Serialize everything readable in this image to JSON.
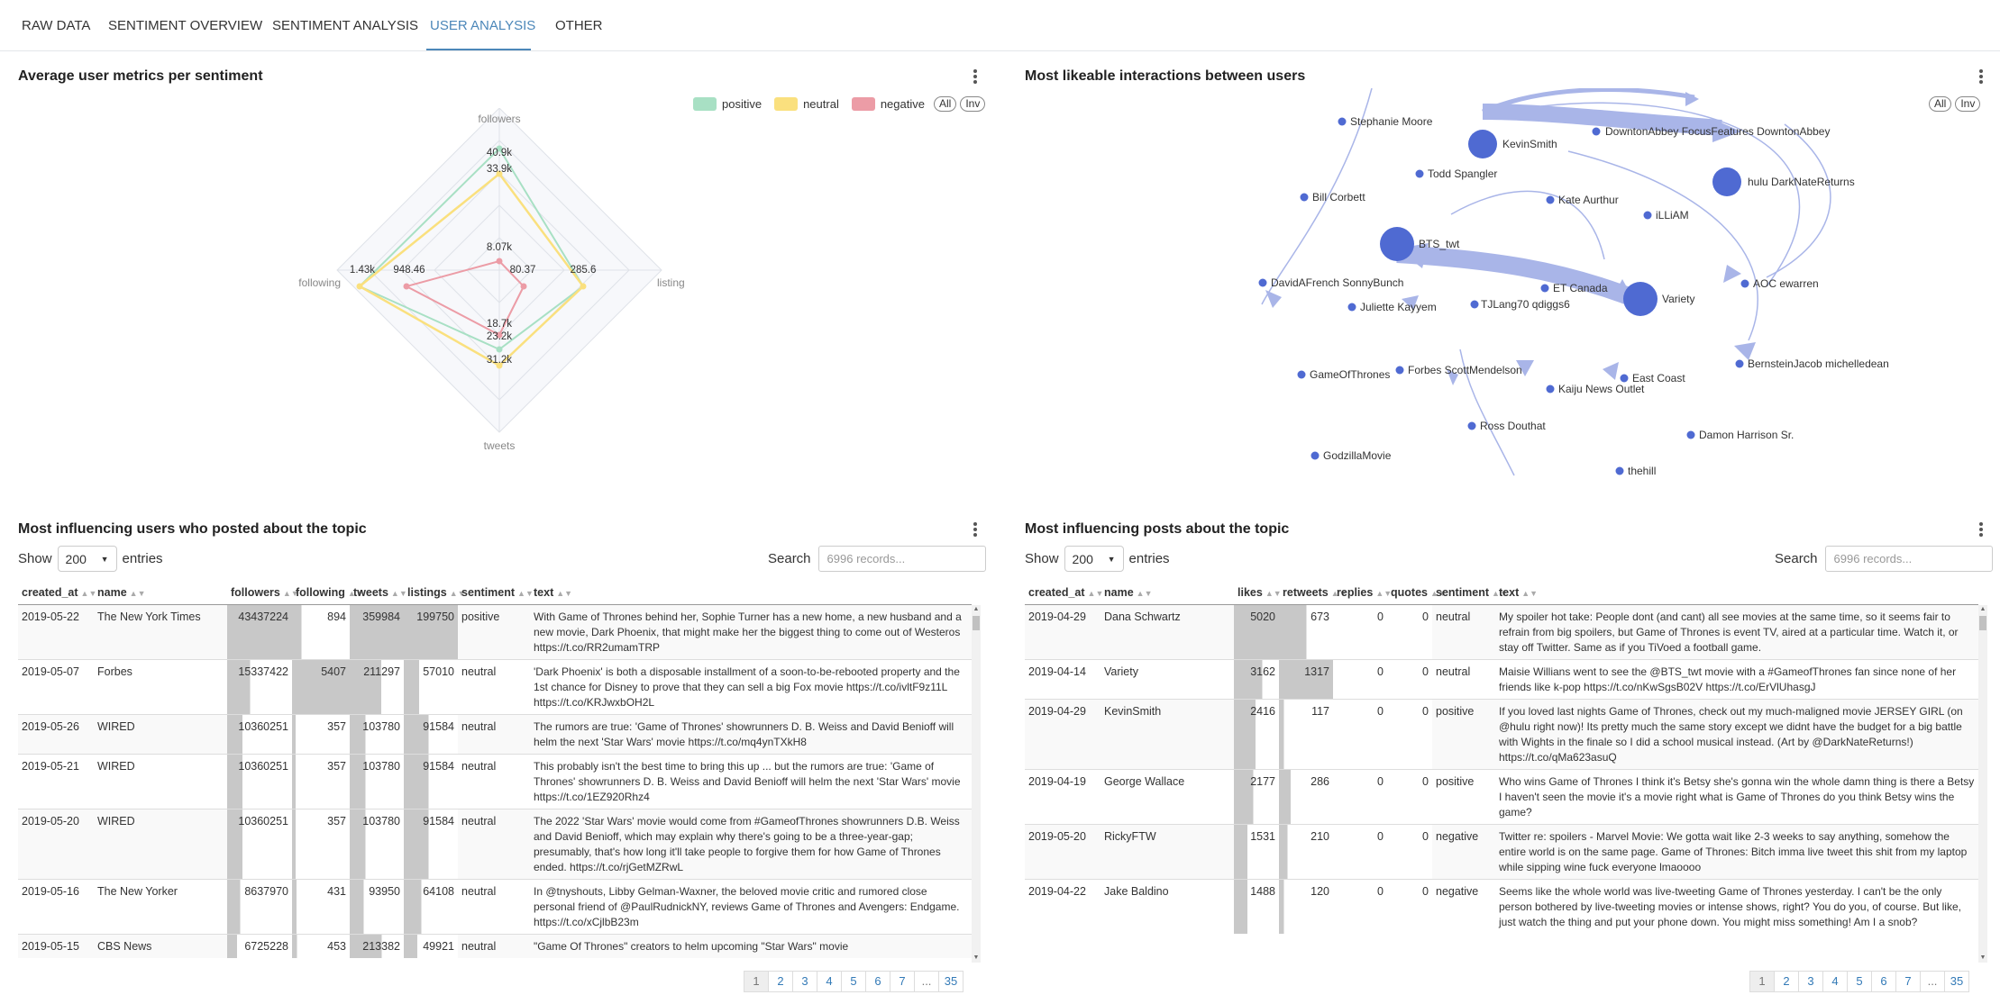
{
  "tabs": [
    "RAW DATA",
    "SENTIMENT OVERVIEW",
    "SENTIMENT ANALYSIS",
    "USER ANALYSIS",
    "OTHER"
  ],
  "active_tab": "USER ANALYSIS",
  "radar": {
    "title": "Average user metrics per sentiment",
    "legend": [
      {
        "label": "positive",
        "color": "#a8e0c4"
      },
      {
        "label": "neutral",
        "color": "#fae07e"
      },
      {
        "label": "negative",
        "color": "#ec9ca6"
      }
    ],
    "btn_all": "All",
    "btn_inv": "Inv",
    "axes": [
      "followers",
      "listing",
      "tweets",
      "following"
    ],
    "value_labels": {
      "followers": [
        "40.9k",
        "33.9k",
        "8.07k"
      ],
      "listing": [
        "80.37",
        "285.6"
      ],
      "tweets": [
        "18.7k",
        "23.2k",
        "31.2k"
      ],
      "following": [
        "1.43k",
        "948.46"
      ]
    },
    "chart_data": {
      "type": "radar",
      "axes": [
        "followers",
        "listing",
        "tweets",
        "following"
      ],
      "series": [
        {
          "name": "positive",
          "values": [
            40900,
            285.6,
            23200,
            1430
          ]
        },
        {
          "name": "neutral",
          "values": [
            33900,
            285.6,
            31200,
            1430
          ]
        },
        {
          "name": "negative",
          "values": [
            8070,
            80.37,
            18700,
            948.46
          ]
        }
      ]
    }
  },
  "network": {
    "title": "Most likeable interactions between users",
    "btn_all": "All",
    "btn_inv": "Inv",
    "nodes": [
      "Stephanie Moore",
      "KevinSmith",
      "DowntonAbbey FocusFeatures DowntonAbbey",
      "hulu DarkNateReturns",
      "Todd Spangler",
      "Bill Corbett",
      "Kate Aurthur",
      "iLLiAM",
      "BTS_twt",
      "DavidAFrench SonnyBunch",
      "ET Canada",
      "Variety",
      "AOC ewarren",
      "Juliette Kayyem",
      "TJLang70 qdiggs6",
      "BernsteinJacob michelledean",
      "GameOfThrones",
      "Forbes ScottMendelson",
      "East Coast",
      "Kaiju News Outlet",
      "Ross Douthat",
      "Damon Harrison Sr.",
      "GodzillaMovie",
      "thehill"
    ]
  },
  "users_table": {
    "title": "Most influencing users who posted about the topic",
    "show_label": "Show",
    "page_size": "200",
    "entries_label": "entries",
    "search_label": "Search",
    "search_placeholder": "6996 records...",
    "columns": [
      "created_at",
      "name",
      "followers",
      "following",
      "tweets",
      "listings",
      "sentiment",
      "text"
    ],
    "max": {
      "followers": 43437224,
      "following": 5407,
      "tweets": 359984,
      "listings": 199750
    },
    "rows": [
      {
        "created_at": "2019-05-22",
        "name": "The New York Times",
        "followers": "43437224",
        "following": "894",
        "tweets": "359984",
        "listings": "199750",
        "sentiment": "positive",
        "text": "With Game of Thrones behind her, Sophie Turner has a new home, a new husband and a new movie, Dark Phoenix, that might make her the biggest thing to come out of Westeros https://t.co/RR2umamTRP"
      },
      {
        "created_at": "2019-05-07",
        "name": "Forbes",
        "followers": "15337422",
        "following": "5407",
        "tweets": "211297",
        "listings": "57010",
        "sentiment": "neutral",
        "text": "'Dark Phoenix' is both a disposable installment of a soon-to-be-rebooted property and the 1st chance for Disney to prove that they can sell a big Fox movie https://t.co/ivltF9z11L https://t.co/KRJwxbOH2L"
      },
      {
        "created_at": "2019-05-26",
        "name": "WIRED",
        "followers": "10360251",
        "following": "357",
        "tweets": "103780",
        "listings": "91584",
        "sentiment": "neutral",
        "text": "The rumors are true: 'Game of Thrones' showrunners D. B. Weiss and David Benioff will helm the next 'Star Wars' movie https://t.co/mq4ynTXkH8"
      },
      {
        "created_at": "2019-05-21",
        "name": "WIRED",
        "followers": "10360251",
        "following": "357",
        "tweets": "103780",
        "listings": "91584",
        "sentiment": "neutral",
        "text": "This probably isn't the best time to bring this up ... but the rumors are true: 'Game of Thrones' showrunners D. B. Weiss and David Benioff will helm the next 'Star Wars' movie https://t.co/1EZ920Rhz4"
      },
      {
        "created_at": "2019-05-20",
        "name": "WIRED",
        "followers": "10360251",
        "following": "357",
        "tweets": "103780",
        "listings": "91584",
        "sentiment": "neutral",
        "text": "The 2022 'Star Wars' movie would come from #GameofThrones showrunners D.B. Weiss and David Benioff, which may explain why there's going to be a three-year-gap; presumably, that's how long it'll take people to forgive them for how Game of Thrones ended. https://t.co/rjGetMZRwL"
      },
      {
        "created_at": "2019-05-16",
        "name": "The New Yorker",
        "followers": "8637970",
        "following": "431",
        "tweets": "93950",
        "listings": "64108",
        "sentiment": "neutral",
        "text": "In @tnyshouts, Libby Gelman-Waxner, the beloved movie critic and rumored close personal friend of @PaulRudnickNY, reviews Game of Thrones and Avengers: Endgame. https://t.co/xCjlbB23m"
      },
      {
        "created_at": "2019-05-15",
        "name": "CBS News",
        "followers": "6725228",
        "following": "453",
        "tweets": "213382",
        "listings": "49921",
        "sentiment": "neutral",
        "text": "\"Game Of Thrones\" creators to helm upcoming \"Star Wars\" movie"
      }
    ],
    "pages": [
      "1",
      "2",
      "3",
      "4",
      "5",
      "6",
      "7",
      "...",
      "35"
    ]
  },
  "posts_table": {
    "title": "Most influencing posts about the topic",
    "show_label": "Show",
    "page_size": "200",
    "entries_label": "entries",
    "search_label": "Search",
    "search_placeholder": "6996 records...",
    "columns": [
      "created_at",
      "name",
      "likes",
      "retweets",
      "replies",
      "quotes",
      "sentiment",
      "text"
    ],
    "max": {
      "likes": 5020,
      "retweets": 1317,
      "replies": 1,
      "quotes": 1
    },
    "rows": [
      {
        "created_at": "2019-04-29",
        "name": "Dana Schwartz",
        "likes": "5020",
        "retweets": "673",
        "replies": "0",
        "quotes": "0",
        "sentiment": "neutral",
        "text": "My spoiler hot take: People dont (and cant) all see movies at the same time, so it seems fair to refrain from big spoilers, but Game of Thrones is event TV, aired at a particular time. Watch it, or stay off Twitter. Same as if you TiVoed a football game."
      },
      {
        "created_at": "2019-04-14",
        "name": "Variety",
        "likes": "3162",
        "retweets": "1317",
        "replies": "0",
        "quotes": "0",
        "sentiment": "neutral",
        "text": "Maisie Willians went to see the @BTS_twt movie with a #GameofThrones fan since none of her friends like k-pop https://t.co/nKwSgsB02V https://t.co/ErVlUhasgJ"
      },
      {
        "created_at": "2019-04-29",
        "name": "KevinSmith",
        "likes": "2416",
        "retweets": "117",
        "replies": "0",
        "quotes": "0",
        "sentiment": "positive",
        "text": "If you loved last nights Game of Thrones, check out my much-maligned movie JERSEY GIRL (on @hulu right now)! Its pretty much the same story except we didnt have the budget for a big battle with Wights in the finale so I did a school musical instead. (Art by @DarkNateReturns!) https://t.co/qMa623asuQ"
      },
      {
        "created_at": "2019-04-19",
        "name": "George Wallace",
        "likes": "2177",
        "retweets": "286",
        "replies": "0",
        "quotes": "0",
        "sentiment": "positive",
        "text": "Who wins Game of Thrones I think it's Betsy she's gonna win the whole damn thing is there a Betsy I haven't seen the movie it's a movie right what is Game of Thrones do you think Betsy wins the game?"
      },
      {
        "created_at": "2019-05-20",
        "name": "RickyFTW",
        "likes": "1531",
        "retweets": "210",
        "replies": "0",
        "quotes": "0",
        "sentiment": "negative",
        "text": "Twitter re: spoilers - Marvel Movie: We gotta wait like 2-3 weeks to say anything, somehow the entire world is on the same page. Game of Thrones: Bitch imma live tweet this shit from my laptop while sipping wine fuck everyone lmaoooo"
      },
      {
        "created_at": "2019-04-22",
        "name": "Jake Baldino",
        "likes": "1488",
        "retweets": "120",
        "replies": "0",
        "quotes": "0",
        "sentiment": "negative",
        "text": "Seems like the whole world was live-tweeting Game of Thrones yesterday. I can't be the only person bothered by live-tweeting movies or intense shows, right? You do you, of course. But like, just watch the thing and put your phone down. You might miss something! Am I a snob?"
      }
    ],
    "pages": [
      "1",
      "2",
      "3",
      "4",
      "5",
      "6",
      "7",
      "...",
      "35"
    ]
  }
}
